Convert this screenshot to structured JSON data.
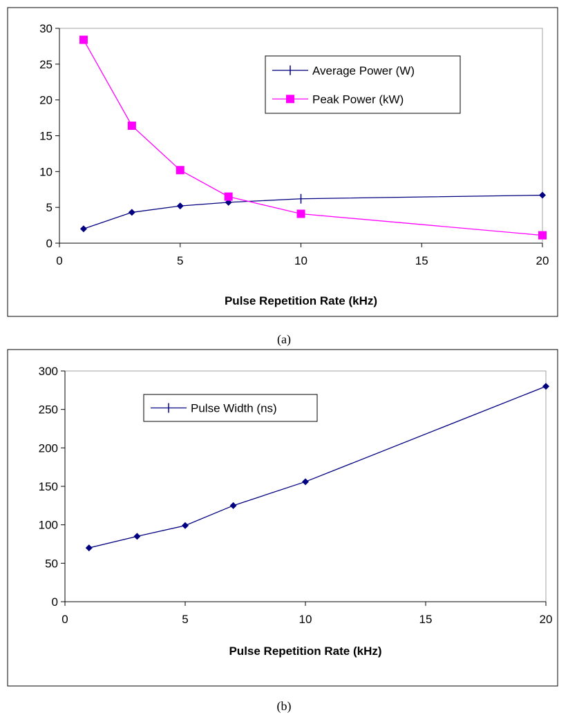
{
  "chart_data": [
    {
      "type": "line",
      "xlabel": "Pulse Repetition Rate (kHz)",
      "ylabel": "",
      "xlim": [
        0,
        20
      ],
      "ylim": [
        0,
        30
      ],
      "xticks": [
        0,
        5,
        10,
        15,
        20
      ],
      "yticks": [
        0,
        5,
        10,
        15,
        20,
        25,
        30
      ],
      "grid": false,
      "legend_position": "top-right",
      "caption": "(a)",
      "series": [
        {
          "name": "Average Power (W)",
          "color": "#000080",
          "marker": "diamond",
          "legend_marker": "plus",
          "x": [
            1,
            3,
            5,
            7,
            10,
            20
          ],
          "y": [
            2.0,
            4.3,
            5.2,
            5.7,
            6.2,
            6.7
          ]
        },
        {
          "name": "Peak Power (kW)",
          "color": "#ff00ff",
          "marker": "square",
          "x": [
            1,
            3,
            5,
            7,
            10,
            20
          ],
          "y": [
            28.4,
            16.4,
            10.2,
            6.5,
            4.1,
            1.1
          ]
        }
      ]
    },
    {
      "type": "line",
      "xlabel": "Pulse Repetition Rate (kHz)",
      "ylabel": "",
      "xlim": [
        0,
        20
      ],
      "ylim": [
        0,
        300
      ],
      "xticks": [
        0,
        5,
        10,
        15,
        20
      ],
      "yticks": [
        0,
        50,
        100,
        150,
        200,
        250,
        300
      ],
      "grid": false,
      "legend_position": "top-left",
      "caption": "(b)",
      "series": [
        {
          "name": "Pulse Width (ns)",
          "color": "#000080",
          "marker": "diamond",
          "legend_marker": "plus",
          "x": [
            1,
            3,
            5,
            7,
            10,
            20
          ],
          "y": [
            70,
            85,
            99,
            125,
            156,
            280
          ]
        }
      ]
    }
  ]
}
